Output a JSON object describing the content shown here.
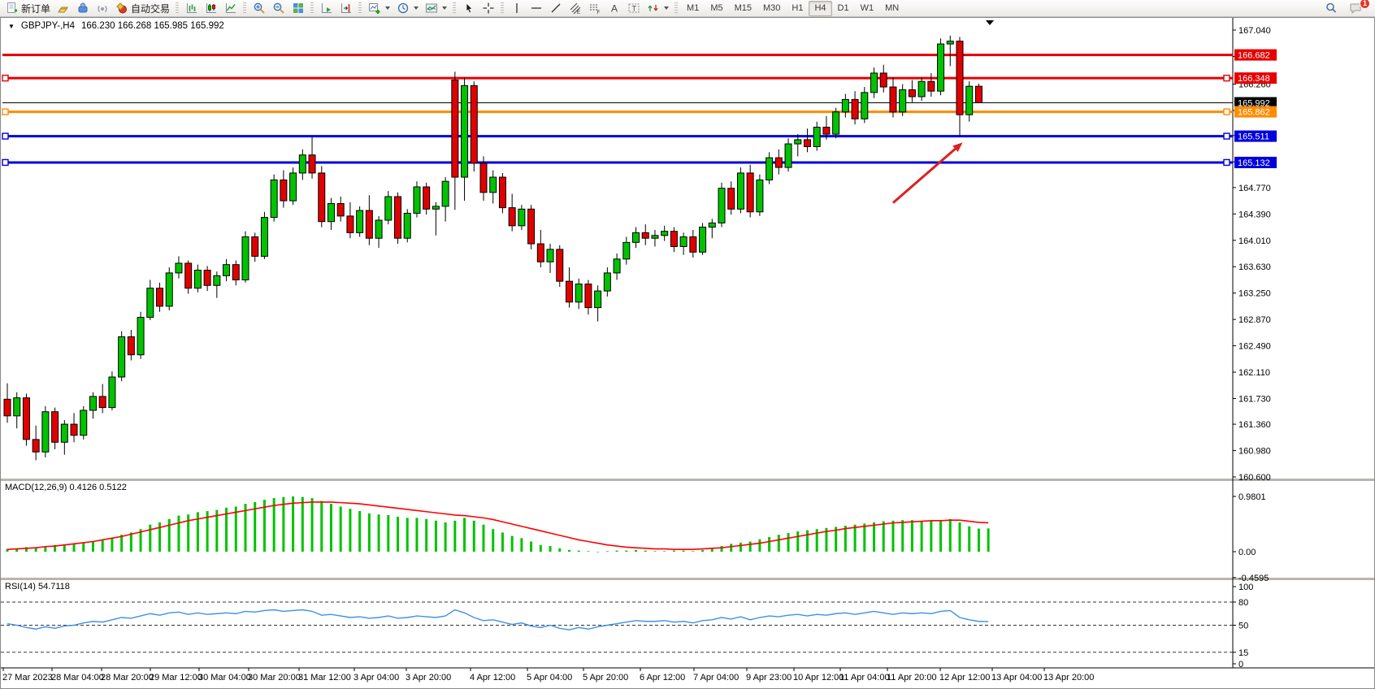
{
  "toolbar": {
    "new_order": "新订单",
    "auto_trading": "自动交易",
    "timeframes": [
      "M1",
      "M5",
      "M15",
      "M30",
      "H1",
      "H4",
      "D1",
      "W1",
      "MN"
    ],
    "active_timeframe": "H4",
    "notification_badge": "1"
  },
  "chart_header": {
    "symbol_period": "GBPJPY-,H4",
    "ohlc": "166.230 166.268 165.985 165.992"
  },
  "chart_data": {
    "type": "candlestick",
    "symbol": "GBPJPY-",
    "timeframe": "H4",
    "current_ohlc": {
      "open": "166.230",
      "high": "166.268",
      "low": "165.985",
      "close": "165.992"
    },
    "colors": {
      "bull": "#00c300",
      "bear": "#e10000",
      "macd_hist": "#00c300",
      "macd_signal": "#ff0000",
      "rsi": "#4090e8",
      "arrow": "#dd2020",
      "hline_red": "#e60000",
      "hline_orange": "#ff8c00",
      "hline_blue": "#0000dc"
    },
    "y_axis": {
      "max": 167.04,
      "min": 160.6,
      "ticks": [
        "167.040",
        "166.660",
        "166.260",
        "165.880",
        "165.520",
        "165.140",
        "164.770",
        "164.390",
        "164.010",
        "163.630",
        "163.250",
        "162.870",
        "162.490",
        "162.110",
        "161.730",
        "161.360",
        "160.980",
        "160.600"
      ]
    },
    "x_axis": {
      "labels": [
        {
          "label": "27 Mar 2023",
          "x": 2
        },
        {
          "label": "28 Mar 04:00",
          "x": 62
        },
        {
          "label": "28 Mar 20:00",
          "x": 123
        },
        {
          "label": "29 Mar 12:00",
          "x": 183
        },
        {
          "label": "30 Mar 04:00",
          "x": 243
        },
        {
          "label": "30 Mar 20:00",
          "x": 304
        },
        {
          "label": "31 Mar 12:00",
          "x": 366
        },
        {
          "label": "3 Apr 04:00",
          "x": 434
        },
        {
          "label": "3 Apr 20:00",
          "x": 498
        },
        {
          "label": "4 Apr 12:00",
          "x": 577
        },
        {
          "label": "5 Apr 04:00",
          "x": 647
        },
        {
          "label": "5 Apr 20:00",
          "x": 716
        },
        {
          "label": "6 Apr 12:00",
          "x": 786
        },
        {
          "label": "7 Apr 04:00",
          "x": 852
        },
        {
          "label": "9 Apr 23:00",
          "x": 917
        },
        {
          "label": "10 Apr 12:00",
          "x": 975
        },
        {
          "label": "11 Apr 04:00",
          "x": 1032
        },
        {
          "label": "11 Apr 20:00",
          "x": 1090
        },
        {
          "label": "12 Apr 12:00",
          "x": 1155
        },
        {
          "label": "13 Apr 04:00",
          "x": 1219
        },
        {
          "label": "13 Apr 20:00",
          "x": 1283
        }
      ]
    },
    "hlines": [
      {
        "label": "166.682",
        "price": 166.682,
        "color": "#e60000",
        "width": 3,
        "selected": false
      },
      {
        "label": "166.348",
        "price": 166.348,
        "color": "#e60000",
        "width": 3,
        "selected": true
      },
      {
        "label": "165.992",
        "price": 165.992,
        "color": "#000000",
        "width": 1,
        "selected": false
      },
      {
        "label": "165.862",
        "price": 165.862,
        "color": "#ff8c00",
        "width": 3,
        "selected": true
      },
      {
        "label": "165.511",
        "price": 165.511,
        "color": "#0000dc",
        "width": 3,
        "selected": true
      },
      {
        "label": "165.132",
        "price": 165.132,
        "color": "#0000dc",
        "width": 3,
        "selected": true
      }
    ],
    "arrow": {
      "from_bar": 93,
      "from_price": 164.55,
      "to_bar": 100.3,
      "to_price": 165.42
    },
    "candles": [
      [
        161.72,
        161.95,
        161.38,
        161.48
      ],
      [
        161.48,
        161.82,
        161.3,
        161.74
      ],
      [
        161.74,
        161.8,
        161.05,
        161.14
      ],
      [
        161.14,
        161.34,
        160.84,
        160.96
      ],
      [
        160.96,
        161.62,
        160.88,
        161.54
      ],
      [
        161.54,
        161.6,
        161.0,
        161.1
      ],
      [
        161.1,
        161.42,
        160.92,
        161.36
      ],
      [
        161.36,
        161.52,
        161.1,
        161.2
      ],
      [
        161.2,
        161.62,
        161.14,
        161.56
      ],
      [
        161.56,
        161.82,
        161.44,
        161.76
      ],
      [
        161.76,
        161.94,
        161.52,
        161.6
      ],
      [
        161.6,
        162.12,
        161.56,
        162.04
      ],
      [
        162.04,
        162.7,
        161.98,
        162.62
      ],
      [
        162.62,
        162.72,
        162.28,
        162.36
      ],
      [
        162.36,
        162.98,
        162.3,
        162.9
      ],
      [
        162.9,
        163.44,
        162.86,
        163.32
      ],
      [
        163.32,
        163.4,
        162.98,
        163.06
      ],
      [
        163.06,
        163.62,
        163.0,
        163.54
      ],
      [
        163.54,
        163.78,
        163.46,
        163.68
      ],
      [
        163.68,
        163.72,
        163.24,
        163.32
      ],
      [
        163.32,
        163.66,
        163.26,
        163.58
      ],
      [
        163.58,
        163.64,
        163.28,
        163.36
      ],
      [
        163.36,
        163.56,
        163.18,
        163.5
      ],
      [
        163.5,
        163.74,
        163.42,
        163.66
      ],
      [
        163.66,
        163.72,
        163.36,
        163.44
      ],
      [
        163.44,
        164.14,
        163.4,
        164.06
      ],
      [
        164.06,
        164.12,
        163.7,
        163.78
      ],
      [
        163.78,
        164.42,
        163.74,
        164.34
      ],
      [
        164.34,
        164.96,
        164.28,
        164.88
      ],
      [
        164.88,
        165.02,
        164.48,
        164.58
      ],
      [
        164.58,
        165.06,
        164.52,
        164.98
      ],
      [
        164.98,
        165.32,
        164.88,
        165.24
      ],
      [
        165.24,
        165.5,
        164.9,
        164.98
      ],
      [
        164.98,
        165.08,
        164.2,
        164.28
      ],
      [
        164.28,
        164.62,
        164.16,
        164.54
      ],
      [
        164.54,
        164.64,
        164.28,
        164.36
      ],
      [
        164.36,
        164.56,
        164.04,
        164.12
      ],
      [
        164.12,
        164.5,
        164.06,
        164.44
      ],
      [
        164.44,
        164.66,
        163.94,
        164.04
      ],
      [
        164.04,
        164.36,
        163.9,
        164.3
      ],
      [
        164.3,
        164.72,
        164.24,
        164.64
      ],
      [
        164.64,
        164.7,
        163.96,
        164.04
      ],
      [
        164.04,
        164.46,
        163.98,
        164.4
      ],
      [
        164.4,
        164.86,
        164.34,
        164.78
      ],
      [
        164.78,
        164.84,
        164.38,
        164.46
      ],
      [
        164.46,
        164.56,
        164.08,
        164.5
      ],
      [
        164.5,
        164.92,
        164.28,
        164.86
      ],
      [
        166.32,
        166.44,
        164.45,
        164.92
      ],
      [
        164.92,
        166.36,
        164.58,
        166.24
      ],
      [
        166.24,
        166.3,
        165.0,
        165.12
      ],
      [
        165.12,
        165.22,
        164.58,
        164.7
      ],
      [
        164.7,
        165.02,
        164.54,
        164.92
      ],
      [
        164.92,
        164.98,
        164.4,
        164.48
      ],
      [
        164.48,
        164.68,
        164.14,
        164.22
      ],
      [
        164.22,
        164.52,
        164.16,
        164.46
      ],
      [
        164.46,
        164.52,
        163.88,
        163.96
      ],
      [
        163.96,
        164.16,
        163.62,
        163.7
      ],
      [
        163.7,
        163.96,
        163.54,
        163.88
      ],
      [
        163.88,
        163.94,
        163.34,
        163.42
      ],
      [
        163.42,
        163.62,
        163.04,
        163.12
      ],
      [
        163.12,
        163.46,
        163.02,
        163.38
      ],
      [
        163.38,
        163.44,
        162.94,
        163.04
      ],
      [
        163.04,
        163.36,
        162.84,
        163.28
      ],
      [
        163.28,
        163.62,
        163.2,
        163.54
      ],
      [
        163.54,
        163.82,
        163.44,
        163.74
      ],
      [
        163.74,
        164.06,
        163.66,
        163.98
      ],
      [
        163.98,
        164.2,
        163.9,
        164.12
      ],
      [
        164.12,
        164.24,
        163.94,
        164.04
      ],
      [
        164.04,
        164.16,
        163.92,
        164.08
      ],
      [
        164.08,
        164.22,
        164.0,
        164.14
      ],
      [
        164.14,
        164.2,
        163.84,
        163.92
      ],
      [
        163.92,
        164.12,
        163.8,
        164.06
      ],
      [
        164.06,
        164.16,
        163.76,
        163.84
      ],
      [
        163.84,
        164.26,
        163.8,
        164.2
      ],
      [
        164.2,
        164.32,
        164.04,
        164.26
      ],
      [
        164.26,
        164.84,
        164.2,
        164.76
      ],
      [
        164.76,
        164.86,
        164.38,
        164.46
      ],
      [
        164.46,
        165.06,
        164.4,
        164.98
      ],
      [
        164.98,
        165.1,
        164.34,
        164.42
      ],
      [
        164.42,
        164.96,
        164.36,
        164.88
      ],
      [
        164.88,
        165.28,
        164.82,
        165.2
      ],
      [
        165.2,
        165.32,
        164.96,
        165.06
      ],
      [
        165.06,
        165.48,
        165.0,
        165.4
      ],
      [
        165.4,
        165.54,
        165.22,
        165.46
      ],
      [
        165.46,
        165.62,
        165.28,
        165.36
      ],
      [
        165.36,
        165.72,
        165.3,
        165.64
      ],
      [
        165.64,
        165.8,
        165.46,
        165.54
      ],
      [
        165.54,
        165.92,
        165.48,
        165.86
      ],
      [
        165.86,
        166.12,
        165.78,
        166.04
      ],
      [
        166.04,
        166.16,
        165.68,
        165.76
      ],
      [
        165.76,
        166.22,
        165.7,
        166.14
      ],
      [
        166.14,
        166.5,
        166.06,
        166.42
      ],
      [
        166.42,
        166.54,
        166.14,
        166.22
      ],
      [
        166.22,
        166.36,
        165.78,
        165.86
      ],
      [
        165.86,
        166.26,
        165.8,
        166.18
      ],
      [
        166.18,
        166.32,
        166.0,
        166.08
      ],
      [
        166.08,
        166.36,
        166.02,
        166.3
      ],
      [
        166.3,
        166.42,
        166.08,
        166.16
      ],
      [
        166.16,
        166.92,
        166.1,
        166.84
      ],
      [
        166.84,
        166.96,
        166.52,
        166.88
      ],
      [
        166.88,
        166.94,
        165.5,
        165.82
      ],
      [
        165.82,
        166.3,
        165.72,
        166.23
      ],
      [
        166.23,
        166.268,
        165.985,
        165.992
      ]
    ],
    "indicators": {
      "macd": {
        "label": "MACD(12,26,9)",
        "values": "0.4126 0.5122",
        "scale_labels": [
          {
            "label": "0.9801",
            "value": 0.9801
          },
          {
            "label": "0.00",
            "value": 0
          },
          {
            "label": "-0.4595",
            "value": -0.4595
          }
        ],
        "histogram": [
          0.05,
          0.06,
          0.08,
          0.07,
          0.1,
          0.12,
          0.12,
          0.14,
          0.16,
          0.18,
          0.2,
          0.24,
          0.3,
          0.34,
          0.4,
          0.48,
          0.52,
          0.58,
          0.64,
          0.66,
          0.7,
          0.72,
          0.74,
          0.78,
          0.8,
          0.85,
          0.88,
          0.92,
          0.95,
          0.97,
          0.98,
          0.97,
          0.95,
          0.9,
          0.85,
          0.8,
          0.76,
          0.72,
          0.68,
          0.66,
          0.65,
          0.62,
          0.6,
          0.6,
          0.58,
          0.55,
          0.52,
          0.55,
          0.6,
          0.55,
          0.48,
          0.4,
          0.34,
          0.28,
          0.24,
          0.18,
          0.12,
          0.1,
          0.06,
          0.03,
          0.02,
          0.01,
          0.0,
          0.01,
          0.02,
          0.02,
          0.03,
          0.02,
          0.01,
          0.01,
          0.02,
          0.02,
          0.01,
          0.03,
          0.06,
          0.1,
          0.14,
          0.16,
          0.18,
          0.22,
          0.26,
          0.3,
          0.33,
          0.36,
          0.38,
          0.4,
          0.42,
          0.44,
          0.46,
          0.48,
          0.5,
          0.52,
          0.54,
          0.55,
          0.56,
          0.56,
          0.55,
          0.54,
          0.56,
          0.58,
          0.52,
          0.45,
          0.41,
          0.4126
        ],
        "signal": [
          0.04,
          0.05,
          0.06,
          0.07,
          0.09,
          0.1,
          0.12,
          0.14,
          0.16,
          0.18,
          0.21,
          0.24,
          0.27,
          0.31,
          0.35,
          0.39,
          0.43,
          0.47,
          0.51,
          0.55,
          0.58,
          0.61,
          0.64,
          0.67,
          0.7,
          0.73,
          0.76,
          0.79,
          0.82,
          0.84,
          0.86,
          0.87,
          0.88,
          0.88,
          0.88,
          0.87,
          0.86,
          0.85,
          0.83,
          0.81,
          0.79,
          0.77,
          0.75,
          0.73,
          0.71,
          0.69,
          0.67,
          0.65,
          0.64,
          0.62,
          0.6,
          0.57,
          0.53,
          0.49,
          0.45,
          0.41,
          0.37,
          0.33,
          0.29,
          0.25,
          0.21,
          0.18,
          0.15,
          0.12,
          0.1,
          0.08,
          0.07,
          0.06,
          0.05,
          0.05,
          0.04,
          0.04,
          0.04,
          0.05,
          0.06,
          0.07,
          0.09,
          0.11,
          0.13,
          0.15,
          0.18,
          0.21,
          0.24,
          0.27,
          0.3,
          0.33,
          0.36,
          0.38,
          0.41,
          0.43,
          0.45,
          0.47,
          0.49,
          0.51,
          0.52,
          0.53,
          0.54,
          0.55,
          0.55,
          0.56,
          0.56,
          0.54,
          0.52,
          0.5122
        ]
      },
      "rsi": {
        "label": "RSI(14)",
        "value": "54.7118",
        "levels": [
          80,
          50,
          15
        ],
        "scale_labels": [
          {
            "label": "100",
            "value": 100
          },
          {
            "label": "80",
            "value": 80
          },
          {
            "label": "50",
            "value": 50
          },
          {
            "label": "15",
            "value": 15
          },
          {
            "label": "0",
            "value": 0
          }
        ],
        "series": [
          52,
          50,
          47,
          45,
          48,
          46,
          49,
          50,
          53,
          55,
          54,
          57,
          60,
          59,
          62,
          65,
          63,
          66,
          67,
          64,
          66,
          64,
          65,
          66,
          65,
          68,
          67,
          69,
          70,
          68,
          69,
          70,
          68,
          63,
          64,
          62,
          60,
          61,
          59,
          60,
          62,
          59,
          60,
          62,
          61,
          60,
          62,
          70,
          66,
          60,
          56,
          57,
          54,
          51,
          53,
          49,
          47,
          50,
          46,
          44,
          47,
          45,
          48,
          50,
          52,
          54,
          56,
          55,
          55,
          56,
          54,
          55,
          53,
          56,
          57,
          60,
          58,
          61,
          57,
          60,
          62,
          61,
          63,
          64,
          62,
          64,
          63,
          65,
          66,
          64,
          66,
          68,
          66,
          64,
          66,
          65,
          66,
          65,
          68,
          69,
          60,
          57,
          55,
          54.7
        ]
      }
    }
  }
}
